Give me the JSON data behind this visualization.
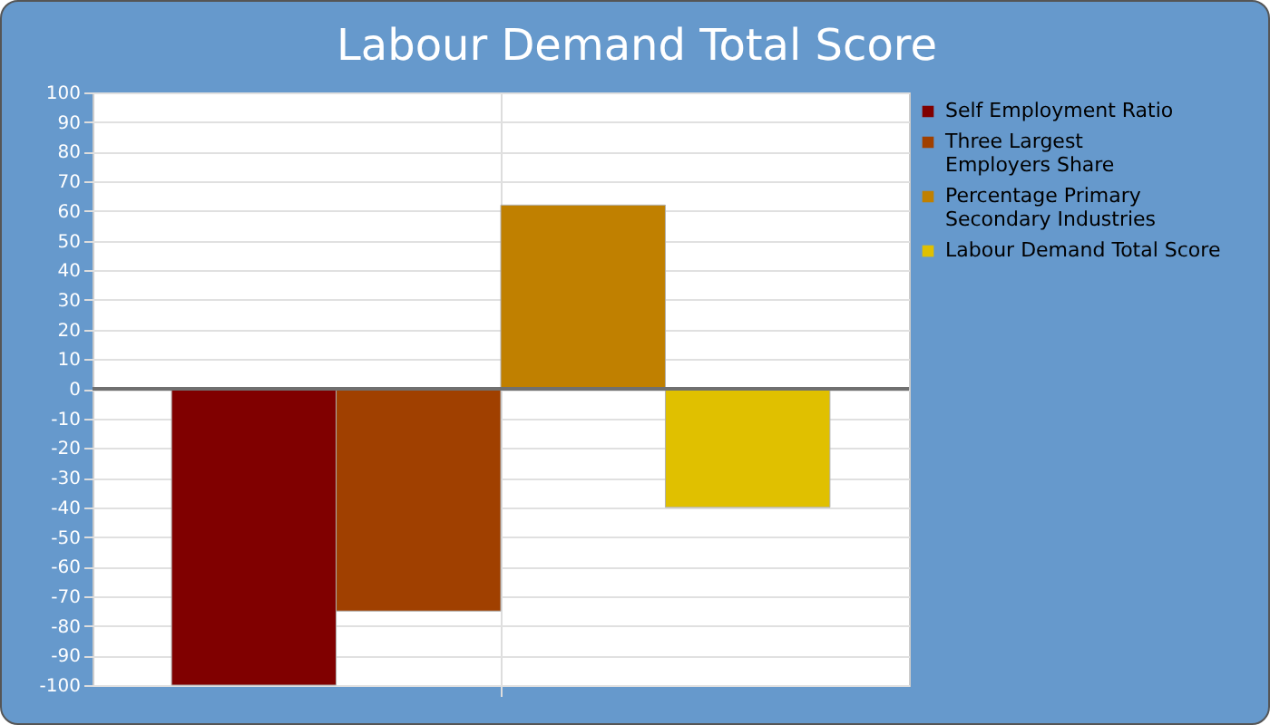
{
  "chart_data": {
    "type": "bar",
    "title": "Labour Demand Total Score",
    "categories": [
      null
    ],
    "series": [
      {
        "name": "Self Employment Ratio",
        "color": "#800000",
        "values": [
          -100
        ]
      },
      {
        "name": "Three Largest Employers Share",
        "color": "#a04000",
        "values": [
          -75
        ]
      },
      {
        "name": "Percentage Primary Secondary Industries",
        "color": "#c08000",
        "values": [
          62
        ]
      },
      {
        "name": "Labour Demand Total Score",
        "color": "#e0c000",
        "values": [
          -40
        ]
      }
    ],
    "ylim": [
      -100,
      100
    ],
    "yticks": [
      -100,
      -90,
      -80,
      -70,
      -60,
      -50,
      -40,
      -30,
      -20,
      -10,
      0,
      10,
      20,
      30,
      40,
      50,
      60,
      70,
      80,
      90,
      100
    ],
    "grid": true,
    "legend": "right",
    "tick_labels": "y"
  }
}
